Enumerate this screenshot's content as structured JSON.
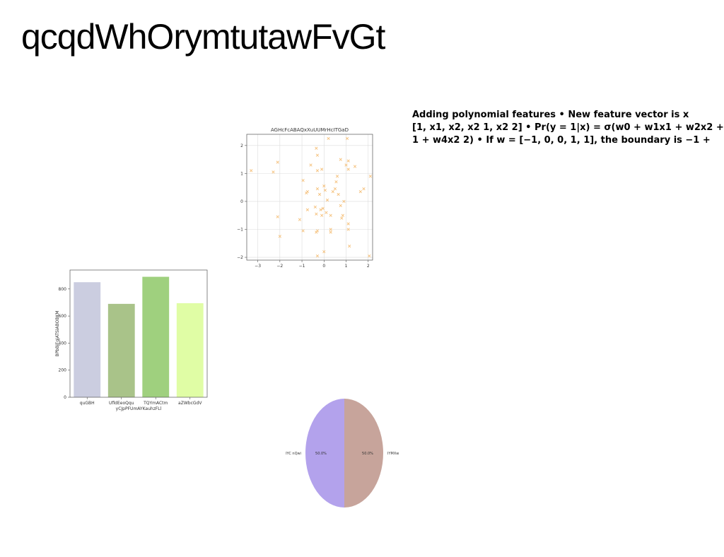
{
  "page": {
    "title": "qcqdWhOrymtutawFvGt",
    "notes": [
      "Adding polynomial features • New feature vector is x",
      "[1, x1, x2, x2 1, x2 2] • Pr(y = 1|x) = σ(w0 + w1x1 + w2x2 +",
      "1 + w4x2 2) • If w = [−1, 0, 0, 1, 1], the boundary is −1 +"
    ]
  },
  "chart_data": [
    {
      "type": "scatter",
      "title": "AGHcFcABAQxXuUUMrHcITGaD",
      "xlabel": "",
      "ylabel": "",
      "xlim": [
        -3.5,
        2.2
      ],
      "ylim": [
        -2.1,
        2.4
      ],
      "xticks": [
        "−3",
        "−2",
        "−1",
        "0",
        "1",
        "2"
      ],
      "xtick_values": [
        -3,
        -2,
        -1,
        0,
        1,
        2
      ],
      "yticks": [
        "−2",
        "−1",
        "0",
        "1",
        "2"
      ],
      "ytick_values": [
        -2,
        -1,
        0,
        1,
        2
      ],
      "grid": true,
      "marker": "x",
      "color": "#f5c07a",
      "points": [
        [
          -3.3,
          1.1
        ],
        [
          -2.3,
          1.05
        ],
        [
          -2.1,
          1.4
        ],
        [
          -2.1,
          -0.55
        ],
        [
          -2.0,
          -1.25
        ],
        [
          -0.95,
          0.75
        ],
        [
          -0.8,
          0.3
        ],
        [
          -0.75,
          0.35
        ],
        [
          -0.6,
          1.3
        ],
        [
          -0.35,
          1.9
        ],
        [
          -0.3,
          1.65
        ],
        [
          -0.3,
          1.1
        ],
        [
          -0.3,
          0.45
        ],
        [
          -0.2,
          0.25
        ],
        [
          -0.1,
          1.15
        ],
        [
          0.0,
          0.55
        ],
        [
          0.05,
          0.4
        ],
        [
          0.2,
          2.25
        ],
        [
          0.15,
          0.05
        ],
        [
          0.4,
          0.35
        ],
        [
          0.5,
          0.45
        ],
        [
          0.55,
          0.7
        ],
        [
          0.6,
          0.9
        ],
        [
          0.65,
          0.25
        ],
        [
          0.75,
          1.5
        ],
        [
          0.9,
          0.0
        ],
        [
          1.0,
          1.3
        ],
        [
          1.05,
          2.25
        ],
        [
          1.1,
          1.15
        ],
        [
          1.1,
          1.45
        ],
        [
          1.4,
          1.25
        ],
        [
          1.65,
          0.35
        ],
        [
          1.8,
          0.45
        ],
        [
          2.1,
          0.9
        ],
        [
          -1.1,
          -0.65
        ],
        [
          -0.95,
          -1.05
        ],
        [
          -0.75,
          -0.3
        ],
        [
          -0.4,
          -0.2
        ],
        [
          -0.35,
          -0.45
        ],
        [
          -0.35,
          -1.1
        ],
        [
          -0.3,
          -1.05
        ],
        [
          -0.3,
          -1.95
        ],
        [
          -0.15,
          -0.3
        ],
        [
          -0.1,
          -0.5
        ],
        [
          -0.05,
          -0.25
        ],
        [
          0.0,
          -1.8
        ],
        [
          0.1,
          -0.4
        ],
        [
          0.3,
          -0.5
        ],
        [
          0.3,
          -1.0
        ],
        [
          0.3,
          -1.1
        ],
        [
          0.75,
          -0.15
        ],
        [
          0.8,
          -0.6
        ],
        [
          0.85,
          -0.5
        ],
        [
          1.1,
          -0.8
        ],
        [
          1.1,
          -1.0
        ],
        [
          1.15,
          -1.6
        ],
        [
          2.05,
          -1.95
        ]
      ]
    },
    {
      "type": "bar",
      "title": "",
      "categories": [
        "quGBH",
        "UfldEeoQqu",
        "TQYmACtm",
        "aZWbcGdV"
      ],
      "values": [
        850,
        690,
        890,
        695
      ],
      "colors": [
        "#cbcde0",
        "#a9c389",
        "#9fd07e",
        "#e0fda5"
      ],
      "xlabel": "yCJpPFUmAYKauhzFLl",
      "ylabel": "BPbBjFgjATSiABOBKM",
      "ylim": [
        0,
        940
      ],
      "yticks": [
        0,
        200,
        400,
        600,
        800
      ]
    },
    {
      "type": "pie",
      "title": "",
      "labels": [
        "IYC nQwi",
        "IYMXw"
      ],
      "values": [
        50.0,
        50.0
      ],
      "percent_labels": [
        "50.0%",
        "50.0%"
      ],
      "colors": [
        "#b3a2ec",
        "#c7a49b"
      ]
    }
  ]
}
